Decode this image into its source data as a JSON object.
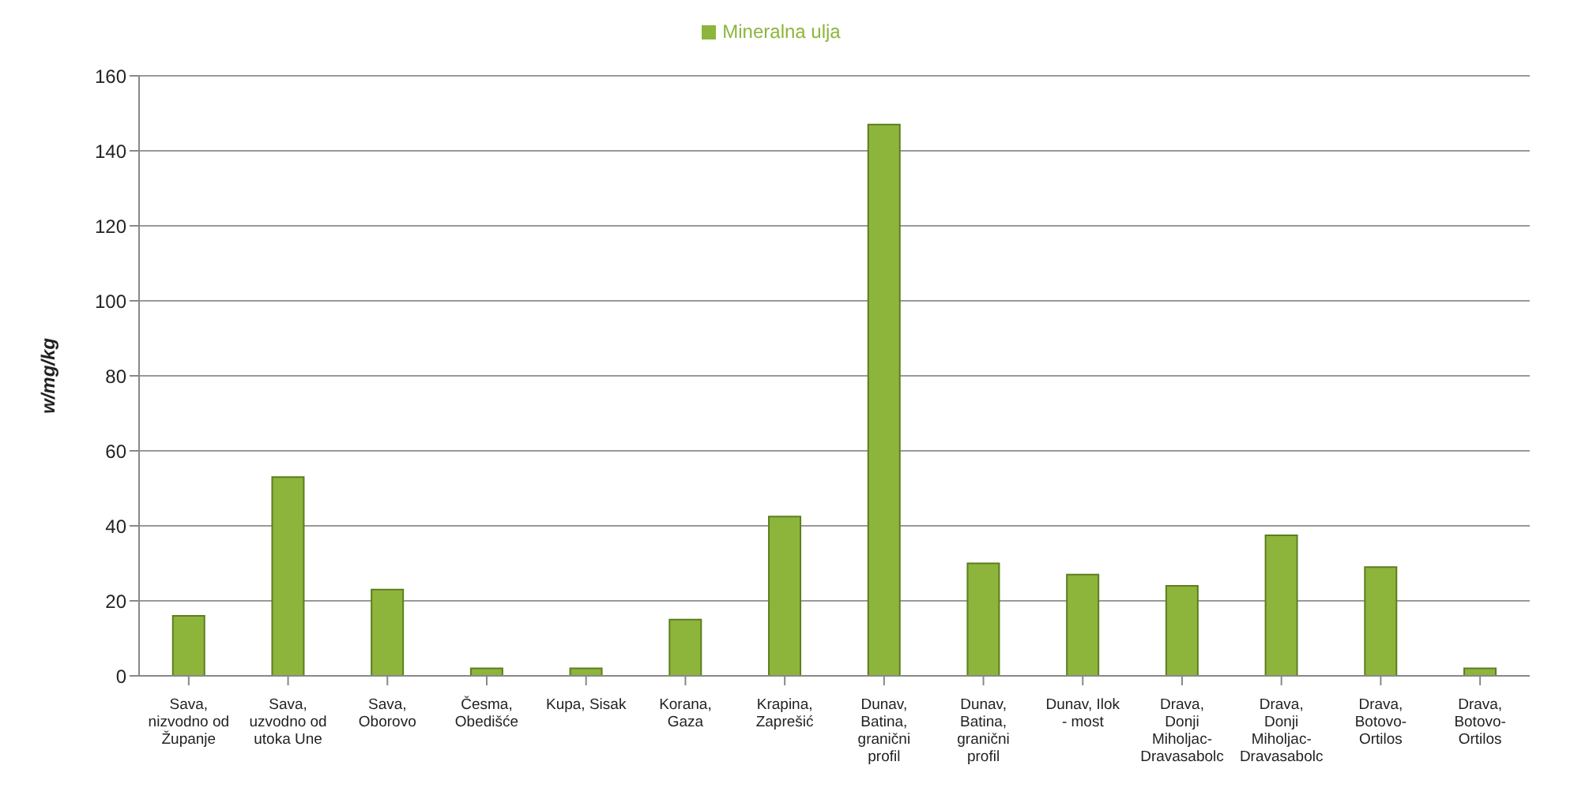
{
  "chart_data": {
    "type": "bar",
    "ylabel": "w/mg/kg",
    "categories": [
      "Sava, nizvodno od Županje",
      "Sava, uzvodno od utoka Une",
      "Sava, Oborovo",
      "Česma, Obedišće",
      "Kupa, Sisak",
      "Korana, Gaza",
      "Krapina, Zaprešić",
      "Dunav, Batina, granični profil",
      "Dunav, Batina, granični profil",
      "Dunav, Ilok - most",
      "Drava, Donji Miholjac-Dravasabolc",
      "Drava, Donji Miholjac-Dravasabolc",
      "Drava, Botovo-Ortilos",
      "Drava, Botovo-Ortilos"
    ],
    "series": [
      {
        "name": "Mineralna ulja",
        "color": "#8db53c",
        "values": [
          16,
          53,
          23,
          2,
          2,
          15,
          42.5,
          147,
          30,
          27,
          24,
          37.5,
          29,
          2
        ]
      }
    ],
    "ylim": [
      0,
      160
    ],
    "yticks": [
      0,
      20,
      40,
      60,
      80,
      100,
      120,
      140,
      160
    ],
    "grid": "y",
    "legend": "top"
  }
}
